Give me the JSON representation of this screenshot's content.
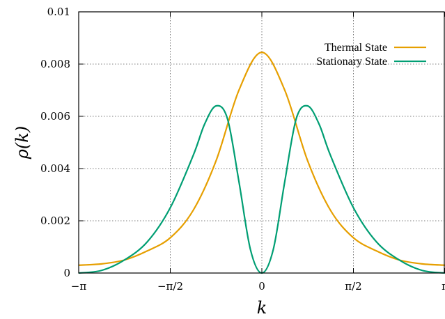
{
  "chart_data": {
    "type": "line",
    "xlabel": "k",
    "ylabel": "ρ(k)",
    "xlim": [
      -3.14159,
      3.14159
    ],
    "ylim": [
      0,
      0.01
    ],
    "grid": true,
    "legend_position": "top-right",
    "x_ticks": [
      {
        "value": -3.14159,
        "label": "−π"
      },
      {
        "value": -1.5708,
        "label": "−π/2"
      },
      {
        "value": 0,
        "label": "0"
      },
      {
        "value": 1.5708,
        "label": "π/2"
      },
      {
        "value": 3.14159,
        "label": "π"
      }
    ],
    "y_ticks": [
      {
        "value": 0,
        "label": "0"
      },
      {
        "value": 0.002,
        "label": "0.002"
      },
      {
        "value": 0.004,
        "label": "0.004"
      },
      {
        "value": 0.006,
        "label": "0.006"
      },
      {
        "value": 0.008,
        "label": "0.008"
      },
      {
        "value": 0.01,
        "label": "0.01"
      }
    ],
    "series": [
      {
        "name": "Thermal State",
        "color": "#E69F00",
        "x": [
          -3.142,
          -2.749,
          -2.356,
          -1.963,
          -1.571,
          -1.178,
          -0.785,
          -0.393,
          0.0,
          0.393,
          0.785,
          1.178,
          1.571,
          1.963,
          2.356,
          2.749,
          3.142
        ],
        "y": [
          0.0003,
          0.00035,
          0.0005,
          0.00085,
          0.00135,
          0.0024,
          0.0043,
          0.007,
          0.00845,
          0.007,
          0.0043,
          0.0024,
          0.00135,
          0.00085,
          0.0005,
          0.00035,
          0.0003
        ]
      },
      {
        "name": "Stationary State",
        "color": "#009E73",
        "x": [
          -3.142,
          -2.749,
          -2.356,
          -1.963,
          -1.571,
          -1.178,
          -0.982,
          -0.785,
          -0.589,
          -0.393,
          -0.196,
          0.0,
          0.196,
          0.393,
          0.589,
          0.785,
          0.982,
          1.178,
          1.571,
          1.963,
          2.356,
          2.749,
          3.142
        ],
        "y": [
          0.0,
          0.0001,
          0.0005,
          0.0012,
          0.0025,
          0.0045,
          0.0057,
          0.0064,
          0.0059,
          0.0035,
          0.0009,
          0.0,
          0.0009,
          0.0035,
          0.0059,
          0.0064,
          0.0057,
          0.0045,
          0.0025,
          0.0012,
          0.0005,
          0.0001,
          0.0
        ]
      }
    ]
  }
}
